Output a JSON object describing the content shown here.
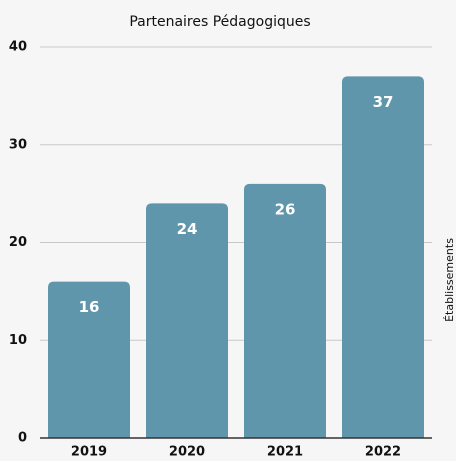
{
  "chart_data": {
    "type": "bar",
    "title": "Partenaires Pédagogiques",
    "categories": [
      "2019",
      "2020",
      "2021",
      "2022"
    ],
    "values": [
      16,
      24,
      26,
      37
    ],
    "color": "#5f96ab",
    "ylim": [
      0,
      40
    ],
    "yticks": [
      0,
      10,
      20,
      30,
      40
    ],
    "grid": true,
    "y_axis_label": "Établissements",
    "y_axis_label_side": "right"
  }
}
